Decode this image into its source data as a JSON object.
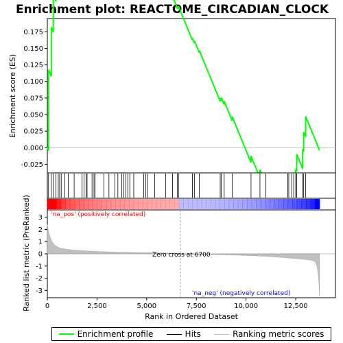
{
  "chart_data": {
    "type": "line",
    "title": "Enrichment plot: REACTOME_CIRCADIAN_CLOCK",
    "top_panel": {
      "ylabel": "Enrichment score (ES)",
      "ylim": [
        -0.038,
        0.195
      ],
      "yticks": [
        -0.025,
        0.0,
        0.025,
        0.05,
        0.075,
        0.1,
        0.125,
        0.15,
        0.175
      ],
      "ytick_labels": [
        "-0.025",
        "0.000",
        "0.025",
        "0.050",
        "0.075",
        "0.100",
        "0.125",
        "0.150",
        "0.175"
      ],
      "series_color": "#00ff00",
      "peak": {
        "rank": 5050,
        "es": 0.185
      }
    },
    "hits_panel": {
      "hit_ranks": [
        60,
        200,
        300,
        430,
        550,
        620,
        700,
        880,
        1050,
        1350,
        1750,
        1850,
        1950,
        2000,
        2250,
        2350,
        2400,
        2850,
        3100,
        3400,
        3550,
        3750,
        3850,
        3950,
        4050,
        4150,
        4350,
        4850,
        4950,
        5050,
        5400,
        5950,
        6300,
        6550,
        6600,
        7300,
        7400,
        7650,
        8700,
        8750,
        8900,
        9300,
        10250,
        10700,
        11000,
        12100,
        12150,
        12300,
        12400,
        12500,
        12550,
        12850,
        12900,
        13000
      ]
    },
    "ranking_panel": {
      "ylabel": "Ranked list metric (PreRanked)",
      "ylim": [
        -3.6,
        3.6
      ],
      "yticks": [
        -3,
        -2,
        -1,
        0,
        1,
        2,
        3
      ],
      "ytick_labels": [
        "-3",
        "-2",
        "-1",
        "0",
        "1",
        "2",
        "3"
      ],
      "zero_cross_label": "Zero cross at 6700",
      "zero_cross_rank": 6700,
      "pos_label": "'na_pos' (positively correlated)",
      "neg_label": "'na_neg' (negatively correlated)",
      "pos_color": "#ff0000",
      "neg_color": "#0000ff"
    },
    "x_axis": {
      "xlabel": "Rank in Ordered Dataset",
      "xlim": [
        0,
        14500
      ],
      "n_ranks": 13700,
      "xticks": [
        0,
        2500,
        5000,
        7500,
        10000,
        12500
      ],
      "xtick_labels": [
        "0",
        "2,500",
        "5,000",
        "7,500",
        "10,000",
        "12,500"
      ]
    },
    "legend": [
      {
        "label": "Enrichment profile",
        "color": "#00ff00"
      },
      {
        "label": "Hits",
        "color": "#000000"
      },
      {
        "label": "Ranking metric scores",
        "color": "#c0c0c0"
      }
    ]
  }
}
